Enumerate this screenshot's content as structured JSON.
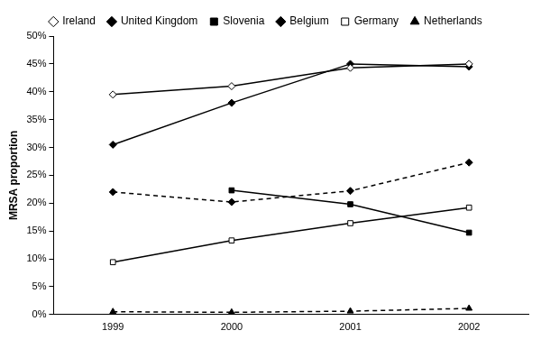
{
  "chart_data": {
    "type": "line",
    "y_label": "MRSA proportion",
    "categories": [
      "1999",
      "2000",
      "2001",
      "2002"
    ],
    "series": [
      {
        "name": "Ireland",
        "color": "#000000",
        "marker": "diamond-open",
        "line_style": "solid",
        "values": [
          39.5,
          41,
          44.3,
          45
        ]
      },
      {
        "name": "United Kingdom",
        "color": "#000000",
        "marker": "diamond",
        "line_style": "solid",
        "values": [
          30.5,
          38,
          45,
          44.5
        ]
      },
      {
        "name": "Slovenia",
        "color": "#000000",
        "marker": "square",
        "line_style": "solid",
        "values": [
          null,
          22.3,
          19.8,
          14.7
        ]
      },
      {
        "name": "Belgium",
        "color": "#000000",
        "marker": "diamond",
        "line_style": "dashed",
        "values": [
          22,
          20.2,
          22.2,
          27.3
        ]
      },
      {
        "name": "Germany",
        "color": "#000000",
        "marker": "square-open",
        "line_style": "solid",
        "values": [
          9.4,
          13.3,
          16.4,
          19.2
        ]
      },
      {
        "name": "Netherlands",
        "color": "#000000",
        "marker": "triangle",
        "line_style": "dashed",
        "values": [
          0.5,
          0.4,
          0.6,
          1.1
        ]
      }
    ],
    "ylim": [
      0,
      50
    ],
    "yticks": [
      {
        "value": 0,
        "label": "0%"
      },
      {
        "value": 5,
        "label": "5%"
      },
      {
        "value": 10,
        "label": "10%"
      },
      {
        "value": 15,
        "label": "15%"
      },
      {
        "value": 20,
        "label": "20%"
      },
      {
        "value": 25,
        "label": "25%"
      },
      {
        "value": 30,
        "label": "30%"
      },
      {
        "value": 35,
        "label": "35%"
      },
      {
        "value": 40,
        "label": "40%"
      },
      {
        "value": 45,
        "label": "45%"
      },
      {
        "value": 50,
        "label": "50%"
      }
    ],
    "grid": false,
    "legend": "top"
  }
}
